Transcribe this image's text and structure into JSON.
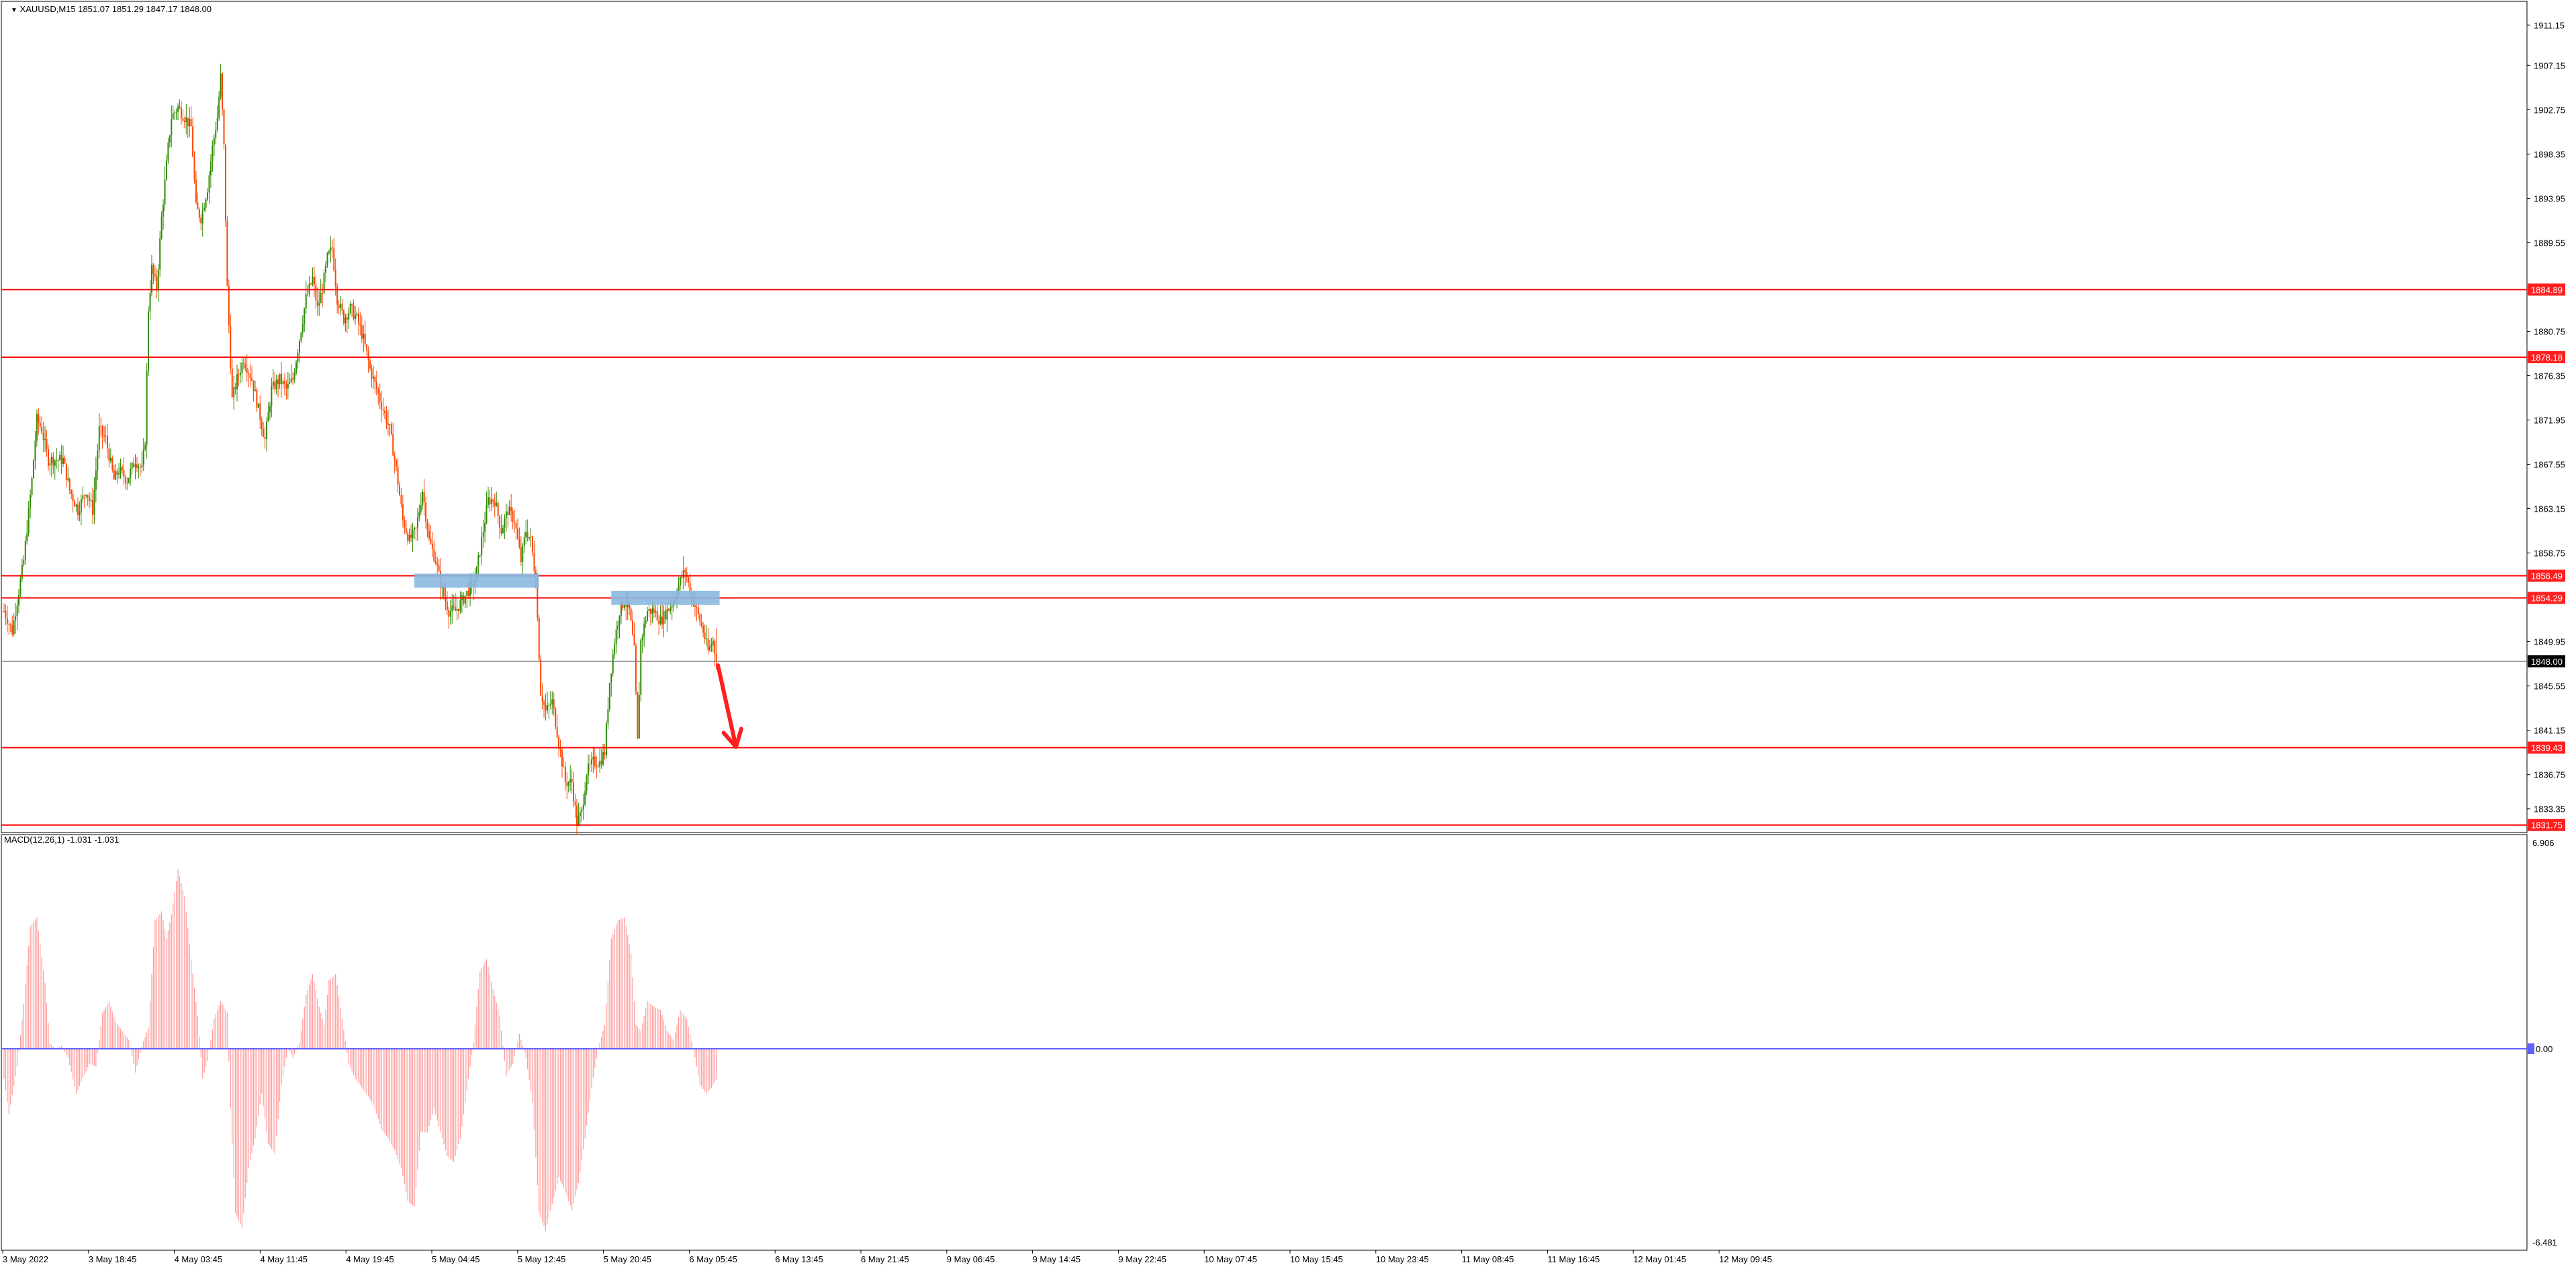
{
  "window": {
    "symbol_header": "XAUUSD,M15  1851.07 1851.29 1847.17 1848.00",
    "indicator_header": "MACD(12,26,1) -1.031 -1.031"
  },
  "chart_data": {
    "type": "candlestick",
    "symbol": "XAUUSD",
    "timeframe": "M15",
    "ohlc_current": {
      "open": 1851.07,
      "high": 1851.29,
      "low": 1847.17,
      "close": 1848.0
    },
    "price_axis": {
      "ylim": [
        1831.0,
        1913.5
      ],
      "ticks": [
        "1911.15",
        "1907.15",
        "1902.75",
        "1898.35",
        "1893.95",
        "1889.55",
        "1884.89",
        "1880.75",
        "1878.18",
        "1876.35",
        "1871.95",
        "1867.55",
        "1863.15",
        "1858.75",
        "1856.49",
        "1854.29",
        "1849.95",
        "1848.00",
        "1845.55",
        "1841.15",
        "1839.43",
        "1836.75",
        "1833.35",
        "1831.75"
      ]
    },
    "time_axis": {
      "labels": [
        "3 May 2022",
        "3 May 18:45",
        "4 May 03:45",
        "4 May 11:45",
        "4 May 19:45",
        "5 May 04:45",
        "5 May 12:45",
        "5 May 20:45",
        "6 May 05:45",
        "6 May 13:45",
        "6 May 21:45",
        "9 May 06:45",
        "9 May 14:45",
        "9 May 22:45",
        "10 May 07:45",
        "10 May 15:45",
        "10 May 23:45",
        "11 May 08:45",
        "11 May 16:45",
        "12 May 01:45",
        "12 May 09:45"
      ]
    },
    "price_path": [
      [
        0,
        1853
      ],
      [
        5,
        1851
      ],
      [
        12,
        1858
      ],
      [
        17,
        1866
      ],
      [
        20,
        1872
      ],
      [
        23,
        1871
      ],
      [
        27,
        1868
      ],
      [
        32,
        1868
      ],
      [
        36,
        1868
      ],
      [
        40,
        1865
      ],
      [
        45,
        1863
      ],
      [
        50,
        1865
      ],
      [
        54,
        1863
      ],
      [
        58,
        1871
      ],
      [
        62,
        1870
      ],
      [
        67,
        1866
      ],
      [
        70,
        1867
      ],
      [
        75,
        1866
      ],
      [
        80,
        1868
      ],
      [
        84,
        1867
      ],
      [
        86,
        1870
      ],
      [
        88,
        1883
      ],
      [
        90,
        1887
      ],
      [
        93,
        1885
      ],
      [
        96,
        1892
      ],
      [
        100,
        1899
      ],
      [
        102,
        1902
      ],
      [
        106,
        1903
      ],
      [
        110,
        1902
      ],
      [
        114,
        1901
      ],
      [
        117,
        1893
      ],
      [
        120,
        1892
      ],
      [
        124,
        1895
      ],
      [
        127,
        1899
      ],
      [
        130,
        1902
      ],
      [
        132,
        1906
      ],
      [
        134,
        1899
      ],
      [
        136,
        1885
      ],
      [
        139,
        1874
      ],
      [
        142,
        1876
      ],
      [
        146,
        1878
      ],
      [
        151,
        1876
      ],
      [
        155,
        1873
      ],
      [
        159,
        1870
      ],
      [
        163,
        1875
      ],
      [
        168,
        1876
      ],
      [
        172,
        1875
      ],
      [
        176,
        1876
      ],
      [
        180,
        1880
      ],
      [
        184,
        1884
      ],
      [
        188,
        1886
      ],
      [
        191,
        1883
      ],
      [
        194,
        1885
      ],
      [
        197,
        1888
      ],
      [
        200,
        1889
      ],
      [
        203,
        1884
      ],
      [
        207,
        1882
      ],
      [
        211,
        1883
      ],
      [
        215,
        1882
      ],
      [
        219,
        1880
      ],
      [
        223,
        1877
      ],
      [
        227,
        1875
      ],
      [
        231,
        1873
      ],
      [
        235,
        1871
      ],
      [
        239,
        1867
      ],
      [
        243,
        1862
      ],
      [
        247,
        1860
      ],
      [
        251,
        1861
      ],
      [
        255,
        1865
      ],
      [
        259,
        1860
      ],
      [
        263,
        1858
      ],
      [
        267,
        1855
      ],
      [
        271,
        1853
      ],
      [
        275,
        1853
      ],
      [
        279,
        1854
      ],
      [
        283,
        1855
      ],
      [
        287,
        1856
      ],
      [
        291,
        1860
      ],
      [
        295,
        1864
      ],
      [
        299,
        1864
      ],
      [
        303,
        1861
      ],
      [
        307,
        1863
      ],
      [
        311,
        1862
      ],
      [
        315,
        1858
      ],
      [
        318,
        1861
      ],
      [
        321,
        1860
      ],
      [
        324,
        1856
      ],
      [
        327,
        1845
      ],
      [
        330,
        1843
      ],
      [
        334,
        1844
      ],
      [
        338,
        1840
      ],
      [
        342,
        1836
      ],
      [
        346,
        1836
      ],
      [
        349,
        1832
      ],
      [
        352,
        1833
      ],
      [
        355,
        1837
      ],
      [
        359,
        1838
      ],
      [
        363,
        1838
      ],
      [
        366,
        1839
      ],
      [
        369,
        1846
      ],
      [
        372,
        1850
      ],
      [
        375,
        1853
      ],
      [
        378,
        1854
      ],
      [
        381,
        1853
      ],
      [
        384,
        1849
      ],
      [
        386,
        1840
      ],
      [
        388,
        1850
      ],
      [
        392,
        1853
      ],
      [
        396,
        1853
      ],
      [
        400,
        1852
      ],
      [
        404,
        1853
      ],
      [
        408,
        1854
      ],
      [
        412,
        1856
      ],
      [
        415,
        1857
      ],
      [
        418,
        1855
      ],
      [
        422,
        1853
      ],
      [
        426,
        1851
      ],
      [
        429,
        1849
      ],
      [
        432,
        1850
      ],
      [
        434,
        1848
      ]
    ],
    "horizontal_levels": [
      {
        "price": 1884.89,
        "label": "1884.89"
      },
      {
        "price": 1878.18,
        "label": "1878.18"
      },
      {
        "price": 1856.49,
        "label": "1856.49"
      },
      {
        "price": 1854.29,
        "label": "1854.29"
      },
      {
        "price": 1839.43,
        "label": "1839.43"
      },
      {
        "price": 1831.75,
        "label": "1831.75"
      }
    ],
    "current_price": {
      "price": 1848.0,
      "label": "1848.00"
    },
    "zones": [
      {
        "bar_start": 250,
        "bar_end": 326,
        "price_low": 1855.3,
        "price_high": 1856.7
      },
      {
        "bar_start": 370,
        "bar_end": 436,
        "price_low": 1853.6,
        "price_high": 1855.0
      }
    ],
    "arrow": {
      "bar_start": 435,
      "price_start": 1847.6,
      "bar_end": 446,
      "price_end": 1839.5
    },
    "macd": {
      "params": "MACD(12,26,1)",
      "value": -1.031,
      "ylim": [
        -6.481,
        6.906
      ],
      "ticks": [
        "6.906",
        "0.00",
        "-6.481"
      ],
      "path": [
        [
          0,
          -1.0
        ],
        [
          3,
          -2.2
        ],
        [
          8,
          -0.6
        ],
        [
          12,
          1.5
        ],
        [
          16,
          4.1
        ],
        [
          20,
          4.4
        ],
        [
          25,
          2.2
        ],
        [
          28,
          0.2
        ],
        [
          31,
          0.0
        ],
        [
          35,
          0.1
        ],
        [
          39,
          -0.3
        ],
        [
          44,
          -1.5
        ],
        [
          48,
          -1.0
        ],
        [
          52,
          -0.5
        ],
        [
          56,
          -0.6
        ],
        [
          60,
          1.2
        ],
        [
          64,
          1.6
        ],
        [
          68,
          0.9
        ],
        [
          72,
          0.6
        ],
        [
          76,
          0.3
        ],
        [
          80,
          -0.8
        ],
        [
          84,
          0.1
        ],
        [
          88,
          0.7
        ],
        [
          92,
          4.3
        ],
        [
          96,
          4.6
        ],
        [
          99,
          3.7
        ],
        [
          102,
          4.5
        ],
        [
          106,
          6.0
        ],
        [
          110,
          5.1
        ],
        [
          114,
          3.0
        ],
        [
          118,
          1.1
        ],
        [
          121,
          -1.0
        ],
        [
          124,
          -0.4
        ],
        [
          128,
          1.0
        ],
        [
          132,
          1.6
        ],
        [
          136,
          1.2
        ],
        [
          138,
          -2.0
        ],
        [
          141,
          -5.5
        ],
        [
          145,
          -6.0
        ],
        [
          149,
          -4.0
        ],
        [
          153,
          -3.0
        ],
        [
          157,
          -1.5
        ],
        [
          161,
          -3.2
        ],
        [
          165,
          -3.5
        ],
        [
          169,
          -1.2
        ],
        [
          173,
          0.0
        ],
        [
          176,
          -0.3
        ],
        [
          180,
          0.2
        ],
        [
          184,
          1.8
        ],
        [
          188,
          2.5
        ],
        [
          192,
          1.4
        ],
        [
          195,
          0.8
        ],
        [
          198,
          2.3
        ],
        [
          202,
          2.5
        ],
        [
          206,
          1.0
        ],
        [
          210,
          -0.5
        ],
        [
          214,
          -1.0
        ],
        [
          218,
          -1.3
        ],
        [
          222,
          -1.6
        ],
        [
          226,
          -2.0
        ],
        [
          230,
          -2.7
        ],
        [
          234,
          -3.0
        ],
        [
          238,
          -3.4
        ],
        [
          242,
          -4.0
        ],
        [
          246,
          -5.1
        ],
        [
          250,
          -5.3
        ],
        [
          254,
          -2.8
        ],
        [
          258,
          -2.8
        ],
        [
          262,
          -2.0
        ],
        [
          266,
          -2.8
        ],
        [
          270,
          -3.6
        ],
        [
          274,
          -3.8
        ],
        [
          278,
          -3.0
        ],
        [
          282,
          -1.4
        ],
        [
          286,
          0.2
        ],
        [
          290,
          2.6
        ],
        [
          294,
          3.0
        ],
        [
          298,
          2.0
        ],
        [
          302,
          1.1
        ],
        [
          306,
          -0.9
        ],
        [
          310,
          -0.5
        ],
        [
          314,
          0.5
        ],
        [
          318,
          -0.3
        ],
        [
          322,
          -1.8
        ],
        [
          326,
          -5.5
        ],
        [
          330,
          -6.1
        ],
        [
          334,
          -5.2
        ],
        [
          338,
          -4.3
        ],
        [
          342,
          -4.8
        ],
        [
          346,
          -5.4
        ],
        [
          350,
          -4.5
        ],
        [
          354,
          -3.0
        ],
        [
          358,
          -1.3
        ],
        [
          362,
          0.0
        ],
        [
          366,
          0.8
        ],
        [
          370,
          3.7
        ],
        [
          374,
          4.3
        ],
        [
          378,
          4.4
        ],
        [
          382,
          3.2
        ],
        [
          385,
          0.8
        ],
        [
          388,
          0.6
        ],
        [
          392,
          1.6
        ],
        [
          396,
          1.4
        ],
        [
          400,
          1.3
        ],
        [
          404,
          0.6
        ],
        [
          408,
          0.3
        ],
        [
          412,
          1.3
        ],
        [
          416,
          1.0
        ],
        [
          420,
          0.0
        ],
        [
          424,
          -1.2
        ],
        [
          428,
          -1.5
        ],
        [
          431,
          -1.3
        ],
        [
          434,
          -1.031
        ]
      ]
    },
    "colors": {
      "bull": "#2e8b00",
      "bear": "#ff4500",
      "level_line": "#ff0000",
      "level_label_bg": "#ff1f1f",
      "current_line": "#7a7a7a",
      "current_label_bg": "#000000",
      "zone": "#8ab8e0",
      "arrow": "#ff1f1f",
      "macd_hist": "#ff9a9a",
      "macd_zero": "#6060ff",
      "grid": "#000000"
    }
  }
}
